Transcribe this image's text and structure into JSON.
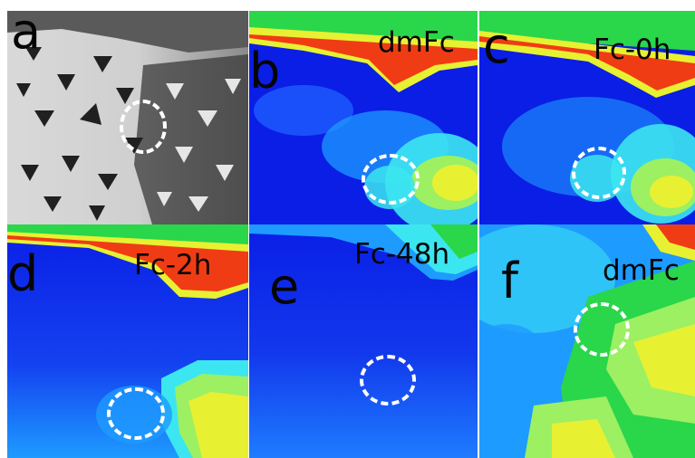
{
  "figure": {
    "panels": [
      {
        "letter": "a",
        "title": ""
      },
      {
        "letter": "b",
        "title": "dmFc"
      },
      {
        "letter": "c",
        "title": "Fc-0h"
      },
      {
        "letter": "d",
        "title": "Fc-2h"
      },
      {
        "letter": "e",
        "title": "Fc-48h"
      },
      {
        "letter": "f",
        "title": "dmFc"
      }
    ]
  },
  "colors": {
    "background": "#ffffff",
    "marker": "#ffffff",
    "label": "#050505",
    "map_low": "#0a1ee6",
    "map_mid": "#1e9bff",
    "map_cyan": "#3ce6f0",
    "map_green": "#2ad64a",
    "map_yellow": "#e8f032",
    "map_high": "#f03c14",
    "sem_light": "#dcdcdc",
    "sem_dark": "#2a2a2a"
  }
}
